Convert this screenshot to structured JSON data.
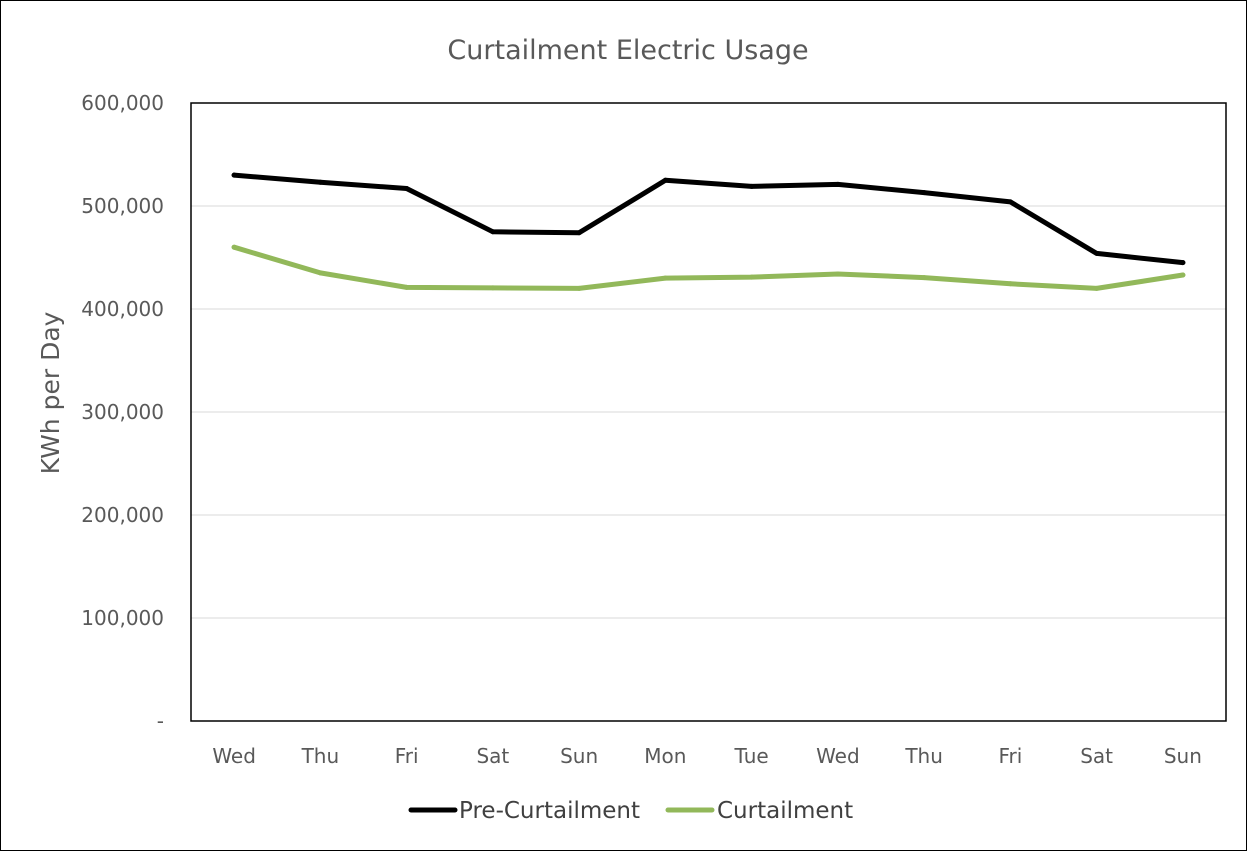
{
  "chart_data": {
    "type": "line",
    "title": "Curtailment Electric Usage",
    "xlabel": "",
    "ylabel": "KWh per Day",
    "categories": [
      "Wed",
      "Thu",
      "Fri",
      "Sat",
      "Sun",
      "Mon",
      "Tue",
      "Wed",
      "Thu",
      "Fri",
      "Sat",
      "Sun"
    ],
    "series": [
      {
        "name": "Pre-Curtailment",
        "color": "#000000",
        "values": [
          530000,
          523000,
          517000,
          475000,
          474000,
          525000,
          519000,
          521000,
          513000,
          504000,
          454000,
          445000
        ]
      },
      {
        "name": "Curtailment",
        "color": "#92b85a",
        "values": [
          460000,
          435000,
          421000,
          420500,
          420000,
          430000,
          431000,
          434000,
          430500,
          424500,
          420000,
          433000
        ]
      }
    ],
    "ylim": [
      0,
      600000
    ],
    "yticks": [
      {
        "value": 0,
        "label": "-"
      },
      {
        "value": 100000,
        "label": "100,000"
      },
      {
        "value": 200000,
        "label": "200,000"
      },
      {
        "value": 300000,
        "label": "300,000"
      },
      {
        "value": 400000,
        "label": "400,000"
      },
      {
        "value": 500000,
        "label": "500,000"
      },
      {
        "value": 600000,
        "label": "600,000"
      }
    ],
    "grid": true,
    "legend": "bottom-center"
  }
}
